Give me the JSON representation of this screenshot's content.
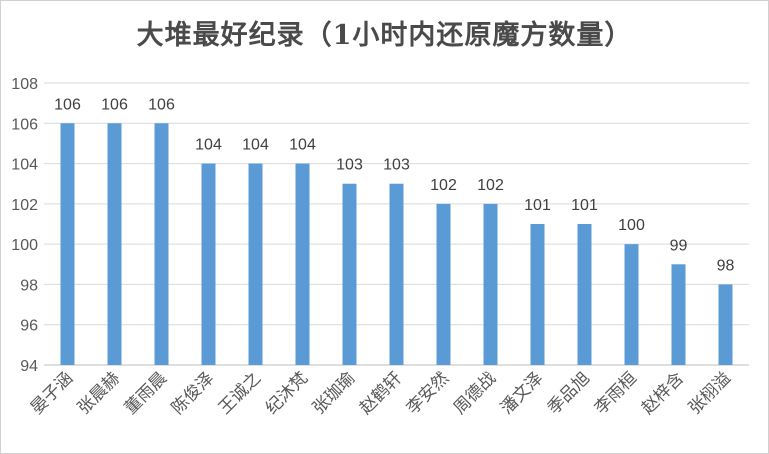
{
  "chart_data": {
    "type": "bar",
    "title": "大堆最好纪录（1小时内还原魔方数量）",
    "categories": [
      "晏子涵",
      "张晨赫",
      "董雨晨",
      "陈俊泽",
      "王诚之",
      "纪沐梵",
      "张珈瑜",
      "赵鹤轩",
      "李安然",
      "周德战",
      "潘文泽",
      "季品旭",
      "李雨桓",
      "赵梓含",
      "张栩溢"
    ],
    "values": [
      106,
      106,
      106,
      104,
      104,
      104,
      103,
      103,
      102,
      102,
      101,
      101,
      100,
      99,
      98
    ],
    "ylim": [
      94,
      108
    ],
    "yticks": [
      94,
      96,
      98,
      100,
      102,
      104,
      106,
      108
    ],
    "xlabel": "",
    "ylabel": "",
    "grid": true,
    "legend": "none",
    "colors": {
      "bar": "#5b9bd5",
      "grid": "#d9d9d9",
      "axis": "#bfbfbf"
    }
  }
}
